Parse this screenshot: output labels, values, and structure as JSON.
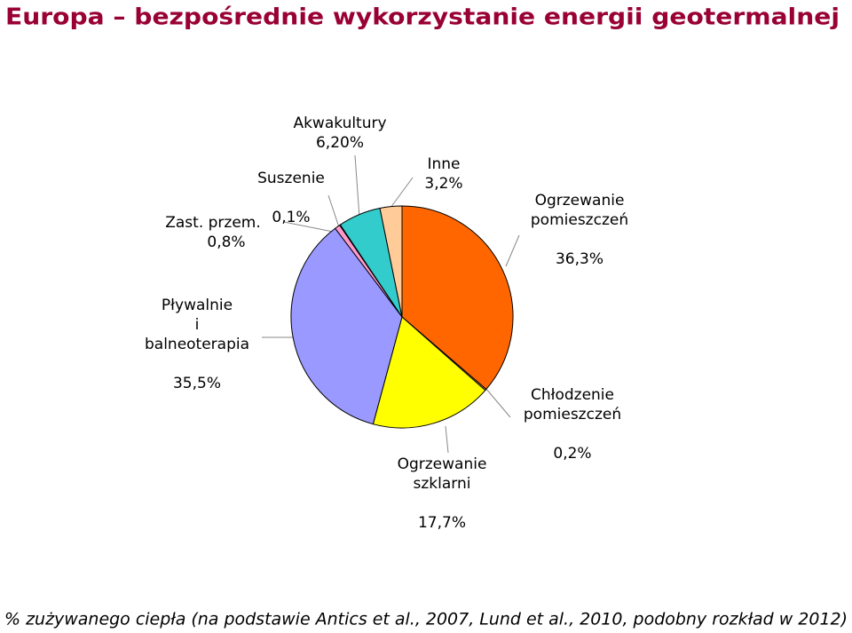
{
  "chart_data": {
    "type": "pie",
    "title": "Europa – bezpośrednie wykorzystanie energii geotermalnej",
    "footnote": "% zużywanego ciepła (na podstawie Antics et al., 2007, Lund et al., 2010, podobny rozkład w 2012)",
    "categories": [
      "Ogrzewanie\npomieszczeń",
      "Chłodzenie\npomieszczeń",
      "Ogrzewanie\nszklarni",
      "Pływalnie\ni\nbalneoterapia",
      "Zast. przem.",
      "Suszenie",
      "Akwakultury",
      "Inne"
    ],
    "values": [
      36.3,
      0.2,
      17.7,
      35.5,
      0.8,
      0.1,
      6.2,
      3.2
    ],
    "value_labels": [
      "36,3%",
      "0,2%",
      "17,7%",
      "35,5%",
      "0,8%",
      "0,1%",
      "6,20%",
      "3,2%"
    ],
    "colors": [
      "#FF6600",
      "#FFCC99",
      "#FFFF00",
      "#9999FF",
      "#FF99CC",
      "#CC99FF",
      "#33CCCC",
      "#FFCC99"
    ]
  }
}
